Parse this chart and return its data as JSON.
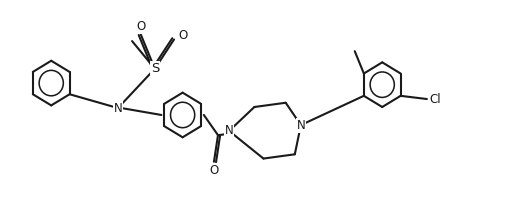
{
  "bg_color": "#ffffff",
  "line_color": "#1a1a1a",
  "line_width": 1.5,
  "font_size": 8.5,
  "fig_width": 5.32,
  "fig_height": 2.14,
  "dpi": 100,
  "xlim": [
    0,
    10.5
  ],
  "ylim": [
    0,
    4.0
  ]
}
